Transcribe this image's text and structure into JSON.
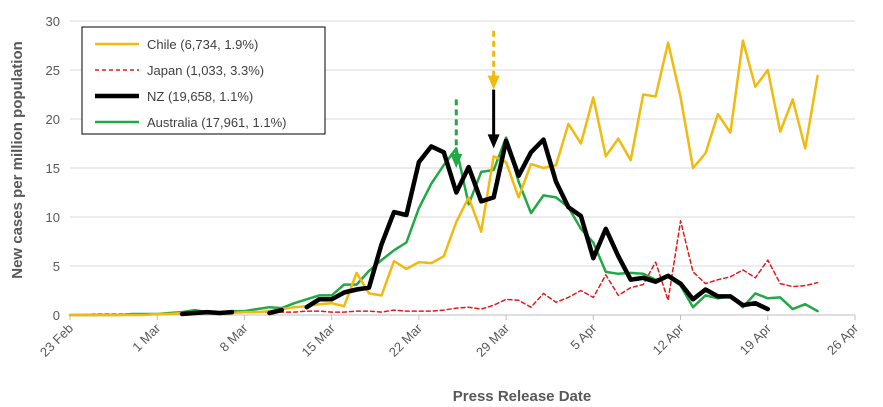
{
  "chart_data": {
    "type": "line",
    "title": "",
    "xlabel": "Press Release Date",
    "ylabel": "New cases per million population",
    "ylim": [
      0,
      30
    ],
    "y_ticks": [
      0,
      5,
      10,
      15,
      20,
      25,
      30
    ],
    "x_tick_labels": [
      "23 Feb",
      "1 Mar",
      "8 Mar",
      "15 Mar",
      "22 Mar",
      "29 Mar",
      "5 Apr",
      "12 Apr",
      "19 Apr",
      "26 Apr"
    ],
    "x_range_days": [
      0,
      63
    ],
    "x_unit": "days since 23 Feb",
    "grid": "horizontal",
    "legend_position": "top-left",
    "series": [
      {
        "name": "Chile (6,734, 1.9%)",
        "color": "#f2b90f",
        "style": "solid",
        "values": [
          [
            0,
            0
          ],
          [
            1,
            0
          ],
          [
            2,
            0
          ],
          [
            3,
            0
          ],
          [
            4,
            0
          ],
          [
            5,
            0
          ],
          [
            6,
            0
          ],
          [
            7,
            0.1
          ],
          [
            8,
            0.1
          ],
          [
            9,
            0.2
          ],
          [
            10,
            0.2
          ],
          [
            11,
            0.3
          ],
          [
            12,
            0.1
          ],
          [
            13,
            0.2
          ],
          [
            14,
            0.3
          ],
          [
            15,
            0.3
          ],
          [
            16,
            0.4
          ],
          [
            17,
            0.6
          ],
          [
            18,
            0.8
          ],
          [
            19,
            0.9
          ],
          [
            20,
            1.1
          ],
          [
            21,
            1.2
          ],
          [
            22,
            0.9
          ],
          [
            23,
            4.3
          ],
          [
            24,
            2.2
          ],
          [
            25,
            2.0
          ],
          [
            26,
            5.5
          ],
          [
            27,
            4.7
          ],
          [
            28,
            5.4
          ],
          [
            29,
            5.3
          ],
          [
            30,
            6.0
          ],
          [
            31,
            9.5
          ],
          [
            32,
            12.0
          ],
          [
            33,
            8.5
          ],
          [
            34,
            16.2
          ],
          [
            35,
            15.6
          ],
          [
            36,
            12.0
          ],
          [
            37,
            15.4
          ],
          [
            38,
            15.0
          ],
          [
            39,
            15.3
          ],
          [
            40,
            19.5
          ],
          [
            41,
            17.5
          ],
          [
            42,
            22.2
          ],
          [
            43,
            16.2
          ],
          [
            44,
            18.0
          ],
          [
            45,
            15.8
          ],
          [
            46,
            22.5
          ],
          [
            47,
            22.3
          ],
          [
            48,
            27.8
          ],
          [
            49,
            22.2
          ],
          [
            50,
            15.0
          ],
          [
            51,
            16.5
          ],
          [
            52,
            20.5
          ],
          [
            53,
            18.6
          ],
          [
            54,
            28.0
          ],
          [
            55,
            23.3
          ],
          [
            56,
            25.0
          ],
          [
            57,
            18.7
          ],
          [
            58,
            22.0
          ],
          [
            59,
            17.0
          ],
          [
            60,
            24.4
          ]
        ]
      },
      {
        "name": "Japan (1,033, 3.3%)",
        "color": "#e31a1c",
        "style": "dashed",
        "values": [
          [
            0,
            0
          ],
          [
            1,
            0
          ],
          [
            2,
            0.1
          ],
          [
            3,
            0.1
          ],
          [
            4,
            0.1
          ],
          [
            5,
            0.1
          ],
          [
            6,
            0.1
          ],
          [
            7,
            0.1
          ],
          [
            8,
            0.2
          ],
          [
            9,
            0.1
          ],
          [
            10,
            0.3
          ],
          [
            11,
            0.2
          ],
          [
            12,
            0.3
          ],
          [
            13,
            0.2
          ],
          [
            14,
            0.3
          ],
          [
            15,
            0.3
          ],
          [
            16,
            0.3
          ],
          [
            17,
            0.3
          ],
          [
            18,
            0.3
          ],
          [
            19,
            0.4
          ],
          [
            20,
            0.4
          ],
          [
            21,
            0.3
          ],
          [
            22,
            0.3
          ],
          [
            23,
            0.4
          ],
          [
            24,
            0.4
          ],
          [
            25,
            0.3
          ],
          [
            26,
            0.5
          ],
          [
            27,
            0.4
          ],
          [
            28,
            0.4
          ],
          [
            29,
            0.4
          ],
          [
            30,
            0.5
          ],
          [
            31,
            0.7
          ],
          [
            32,
            0.8
          ],
          [
            33,
            0.6
          ],
          [
            34,
            1.0
          ],
          [
            35,
            1.6
          ],
          [
            36,
            1.5
          ],
          [
            37,
            0.8
          ],
          [
            38,
            2.2
          ],
          [
            39,
            1.3
          ],
          [
            40,
            1.8
          ],
          [
            41,
            2.5
          ],
          [
            42,
            1.8
          ],
          [
            43,
            4.1
          ],
          [
            44,
            2.0
          ],
          [
            45,
            2.8
          ],
          [
            46,
            3.1
          ],
          [
            47,
            5.4
          ],
          [
            48,
            1.5
          ],
          [
            49,
            9.6
          ],
          [
            50,
            4.4
          ],
          [
            51,
            3.2
          ],
          [
            52,
            3.6
          ],
          [
            53,
            3.9
          ],
          [
            54,
            4.6
          ],
          [
            55,
            3.8
          ],
          [
            56,
            5.6
          ],
          [
            57,
            3.2
          ],
          [
            58,
            2.9
          ],
          [
            59,
            3.0
          ],
          [
            60,
            3.3
          ]
        ]
      },
      {
        "name": "NZ (19,658, 1.1%)",
        "color": "#000000",
        "style": "solid-bold",
        "values": [
          [
            9,
            0.1
          ],
          [
            10,
            0.2
          ],
          [
            11,
            0.3
          ],
          [
            12,
            0.2
          ],
          [
            13,
            0.3
          ],
          [
            null,
            null
          ],
          [
            16,
            0.2
          ],
          [
            17,
            0.5
          ],
          [
            null,
            null
          ],
          [
            19,
            0.8
          ],
          [
            20,
            1.6
          ],
          [
            21,
            1.6
          ],
          [
            22,
            2.3
          ],
          [
            23,
            2.6
          ],
          [
            24,
            2.8
          ],
          [
            25,
            7.2
          ],
          [
            26,
            10.5
          ],
          [
            27,
            10.2
          ],
          [
            28,
            15.6
          ],
          [
            29,
            17.2
          ],
          [
            30,
            16.6
          ],
          [
            31,
            12.5
          ],
          [
            32,
            15.1
          ],
          [
            33,
            11.6
          ],
          [
            34,
            12.0
          ],
          [
            35,
            17.8
          ],
          [
            36,
            14.2
          ],
          [
            37,
            16.6
          ],
          [
            38,
            17.9
          ],
          [
            39,
            13.6
          ],
          [
            40,
            11.0
          ],
          [
            41,
            10.1
          ],
          [
            42,
            5.8
          ],
          [
            43,
            8.8
          ],
          [
            44,
            6.0
          ],
          [
            45,
            3.6
          ],
          [
            46,
            3.8
          ],
          [
            47,
            3.4
          ],
          [
            48,
            4.0
          ],
          [
            49,
            3.2
          ],
          [
            50,
            1.6
          ],
          [
            51,
            2.6
          ],
          [
            52,
            1.9
          ],
          [
            53,
            1.9
          ],
          [
            54,
            1.0
          ],
          [
            55,
            1.2
          ],
          [
            56,
            0.6
          ]
        ]
      },
      {
        "name": "Australia (17,961, 1.1%)",
        "color": "#22a846",
        "style": "solid",
        "values": [
          [
            0,
            0
          ],
          [
            1,
            0
          ],
          [
            2,
            0
          ],
          [
            3,
            0
          ],
          [
            4,
            0
          ],
          [
            5,
            0.1
          ],
          [
            6,
            0.1
          ],
          [
            7,
            0.1
          ],
          [
            8,
            0.2
          ],
          [
            9,
            0.3
          ],
          [
            10,
            0.5
          ],
          [
            11,
            0.3
          ],
          [
            12,
            0.2
          ],
          [
            13,
            0.4
          ],
          [
            14,
            0.4
          ],
          [
            15,
            0.6
          ],
          [
            16,
            0.8
          ],
          [
            17,
            0.7
          ],
          [
            18,
            1.2
          ],
          [
            19,
            1.6
          ],
          [
            20,
            2.0
          ],
          [
            21,
            2.0
          ],
          [
            22,
            3.1
          ],
          [
            23,
            3.1
          ],
          [
            24,
            4.5
          ],
          [
            25,
            5.6
          ],
          [
            26,
            6.6
          ],
          [
            27,
            7.4
          ],
          [
            28,
            10.9
          ],
          [
            29,
            13.4
          ],
          [
            30,
            15.3
          ],
          [
            31,
            17.0
          ],
          [
            32,
            11.3
          ],
          [
            33,
            14.6
          ],
          [
            34,
            14.8
          ],
          [
            35,
            18.1
          ],
          [
            36,
            13.6
          ],
          [
            37,
            10.4
          ],
          [
            38,
            12.2
          ],
          [
            39,
            12.0
          ],
          [
            40,
            11.0
          ],
          [
            41,
            8.8
          ],
          [
            42,
            7.4
          ],
          [
            43,
            4.4
          ],
          [
            44,
            4.2
          ],
          [
            45,
            4.3
          ],
          [
            46,
            4.2
          ],
          [
            47,
            3.6
          ],
          [
            48,
            3.9
          ],
          [
            49,
            3.0
          ],
          [
            50,
            0.8
          ],
          [
            51,
            2.0
          ],
          [
            52,
            1.7
          ],
          [
            53,
            1.9
          ],
          [
            54,
            0.8
          ],
          [
            55,
            2.2
          ],
          [
            56,
            1.7
          ],
          [
            57,
            1.8
          ],
          [
            58,
            0.6
          ],
          [
            59,
            1.1
          ],
          [
            60,
            0.4
          ]
        ]
      }
    ],
    "annotations": [
      {
        "type": "arrow",
        "color": "#f2b90f",
        "style": "dashed",
        "x": 34,
        "y_from": 29,
        "y_to": 23
      },
      {
        "type": "arrow",
        "color": "#000000",
        "style": "solid",
        "x": 34,
        "y_from": 23,
        "y_to": 17
      },
      {
        "type": "arrow",
        "color": "#22a846",
        "style": "dashed",
        "x": 31,
        "y_from": 22,
        "y_to": 15
      }
    ]
  }
}
